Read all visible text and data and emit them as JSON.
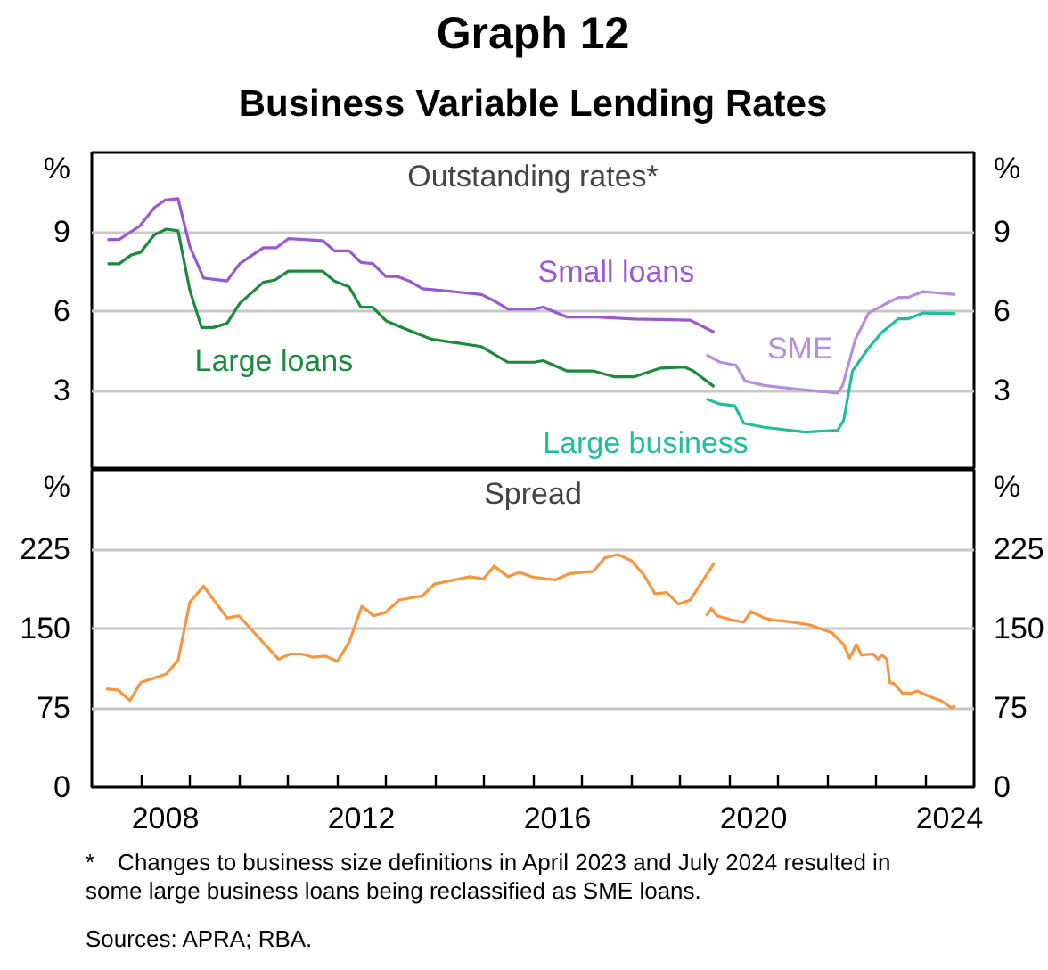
{
  "chart_data": [
    {
      "type": "other",
      "title": "Graph 12",
      "subtitle": "Business Variable Lending Rates"
    },
    {
      "type": "line",
      "title": "Outstanding rates*",
      "ylabel": "%",
      "y2label": "%",
      "xlim": [
        2007,
        2025
      ],
      "ylim": [
        0,
        12
      ],
      "yticks": [
        3,
        6,
        9
      ],
      "y2lim": [
        0,
        12
      ],
      "y2ticks": [
        3,
        6,
        9
      ],
      "grid": "y",
      "tick_labels": "y",
      "series": [
        {
          "name": "Small loans",
          "color": "#9b59d0",
          "x": [
            2007.32,
            2007.56,
            2007.98,
            2008.28,
            2008.5,
            2008.76,
            2009.0,
            2009.28,
            2009.76,
            2010.02,
            2010.5,
            2010.77,
            2011.01,
            2011.71,
            2011.95,
            2012.25,
            2012.49,
            2012.73,
            2013.0,
            2013.24,
            2013.48,
            2013.75,
            2014.11,
            2014.95,
            2015.19,
            2015.49,
            2016.03,
            2016.21,
            2016.69,
            2017.23,
            2018.07,
            2019.21,
            2019.7
          ],
          "values": [
            8.71,
            8.71,
            9.22,
            9.92,
            10.2,
            10.25,
            8.45,
            7.25,
            7.14,
            7.8,
            8.4,
            8.4,
            8.74,
            8.67,
            8.28,
            8.28,
            7.84,
            7.8,
            7.31,
            7.31,
            7.14,
            6.85,
            6.79,
            6.63,
            6.41,
            6.08,
            6.08,
            6.15,
            5.78,
            5.78,
            5.7,
            5.66,
            5.2
          ]
        },
        {
          "name": "SME",
          "color": "#b48fdb",
          "x": [
            2019.54,
            2019.82,
            2020.14,
            2020.33,
            2020.72,
            2021.44,
            2022.22,
            2022.32,
            2022.58,
            2022.85,
            2023.18,
            2023.46,
            2023.66,
            2023.96,
            2024.2,
            2024.62
          ],
          "values": [
            4.35,
            4.07,
            3.96,
            3.36,
            3.19,
            3.04,
            2.9,
            3.19,
            4.94,
            5.93,
            6.26,
            6.52,
            6.52,
            6.74,
            6.7,
            6.63
          ]
        },
        {
          "name": "Large loans",
          "color": "#1a8a3c",
          "x": [
            2007.32,
            2007.56,
            2007.8,
            2008.0,
            2008.28,
            2008.52,
            2008.76,
            2009.0,
            2009.24,
            2009.48,
            2009.76,
            2010.02,
            2010.5,
            2010.74,
            2011.01,
            2011.71,
            2011.95,
            2012.25,
            2012.49,
            2012.73,
            2013.0,
            2013.48,
            2013.93,
            2014.95,
            2015.25,
            2015.49,
            2016.03,
            2016.21,
            2016.69,
            2017.23,
            2017.65,
            2018.07,
            2018.61,
            2019.09,
            2019.27,
            2019.7
          ],
          "values": [
            7.79,
            7.79,
            8.12,
            8.23,
            8.89,
            9.1,
            9.04,
            6.8,
            5.38,
            5.38,
            5.54,
            6.3,
            7.09,
            7.18,
            7.51,
            7.51,
            7.14,
            6.92,
            6.15,
            6.15,
            5.64,
            5.27,
            4.94,
            4.66,
            4.33,
            4.07,
            4.07,
            4.13,
            3.74,
            3.74,
            3.52,
            3.52,
            3.85,
            3.89,
            3.74,
            3.14
          ]
        },
        {
          "name": "Large business",
          "color": "#1fbf9c",
          "x": [
            2019.54,
            2019.82,
            2020.12,
            2020.3,
            2020.72,
            2021.56,
            2022.22,
            2022.34,
            2022.52,
            2022.85,
            2023.12,
            2023.46,
            2023.66,
            2023.96,
            2024.62
          ],
          "values": [
            2.68,
            2.49,
            2.42,
            1.76,
            1.61,
            1.43,
            1.5,
            1.87,
            3.74,
            4.61,
            5.2,
            5.71,
            5.71,
            5.93,
            5.91
          ]
        }
      ]
    },
    {
      "type": "line",
      "title": "Spread",
      "ylabel": "%",
      "y2label": "%",
      "xlim": [
        2007,
        2025
      ],
      "ylim": [
        0,
        300
      ],
      "yticks": [
        0,
        75,
        150,
        225
      ],
      "y2lim": [
        0,
        300
      ],
      "y2ticks": [
        0,
        75,
        150,
        225
      ],
      "grid": "y",
      "color": "#f7963e",
      "xticks": [
        {
          "value": 2008,
          "label": null
        },
        {
          "value": 2008.5,
          "label": "2008"
        },
        {
          "value": 2009,
          "label": null
        },
        {
          "value": 2010,
          "label": null
        },
        {
          "value": 2011,
          "label": null
        },
        {
          "value": 2012,
          "label": null
        },
        {
          "value": 2012.5,
          "label": "2012"
        },
        {
          "value": 2013,
          "label": null
        },
        {
          "value": 2014,
          "label": null
        },
        {
          "value": 2015,
          "label": null
        },
        {
          "value": 2016,
          "label": null
        },
        {
          "value": 2016.5,
          "label": "2016"
        },
        {
          "value": 2017,
          "label": null
        },
        {
          "value": 2018,
          "label": null
        },
        {
          "value": 2019,
          "label": null
        },
        {
          "value": 2020,
          "label": null
        },
        {
          "value": 2020.5,
          "label": "2020"
        },
        {
          "value": 2021,
          "label": null
        },
        {
          "value": 2022,
          "label": null
        },
        {
          "value": 2023,
          "label": null
        },
        {
          "value": 2024,
          "label": null
        },
        {
          "value": 2024.5,
          "label": "2024"
        }
      ],
      "x": [
        2007.29,
        2007.53,
        2007.78,
        2008.0,
        2008.52,
        2008.76,
        2009.0,
        2009.28,
        2009.76,
        2010.0,
        2010.81,
        2011.05,
        2011.29,
        2011.5,
        2011.77,
        2012.01,
        2012.25,
        2012.51,
        2012.75,
        2012.99,
        2013.27,
        2013.75,
        2013.99,
        2014.71,
        2014.99,
        2015.21,
        2015.49,
        2015.73,
        2015.97,
        2016.27,
        2016.45,
        2016.75,
        2017.23,
        2017.47,
        2017.74,
        2018.01,
        2018.26,
        2018.49,
        2018.73,
        2018.97,
        2019.21,
        2019.7,
        2019.62,
        2019.54,
        2019.64,
        2019.76,
        2020.06,
        2020.3,
        2020.45,
        2020.72,
        2020.9,
        2021.14,
        2021.44,
        2021.68,
        2022.1,
        2022.34,
        2022.46,
        2022.6,
        2022.7,
        2022.94,
        2023.04,
        2023.12,
        2023.22,
        2023.28,
        2023.36,
        2023.54,
        2023.72,
        2023.84,
        2024.08,
        2024.32,
        2024.54,
        2024.62
      ],
      "values": [
        93,
        92,
        82,
        99,
        107,
        120,
        175,
        190,
        160,
        162,
        121,
        126,
        126,
        123,
        124,
        119,
        137,
        171,
        162,
        165,
        177,
        181,
        192,
        199,
        197,
        209,
        199,
        203,
        199,
        197,
        196,
        202,
        204,
        217,
        220,
        214,
        201,
        183,
        184,
        173,
        177,
        212,
        null,
        162,
        169,
        162,
        158,
        156,
        166,
        160,
        158,
        157,
        155,
        153,
        146,
        135,
        122,
        135,
        125,
        126,
        121,
        125,
        121,
        99,
        98,
        89,
        89,
        91,
        86,
        82,
        75,
        77
      ],
      "annotations": [
        "* Changes to business size definitions in April 2023 and July 2024 resulted in some large business loans being reclassified as SME loans.",
        "Sources: APRA; RBA."
      ]
    }
  ]
}
